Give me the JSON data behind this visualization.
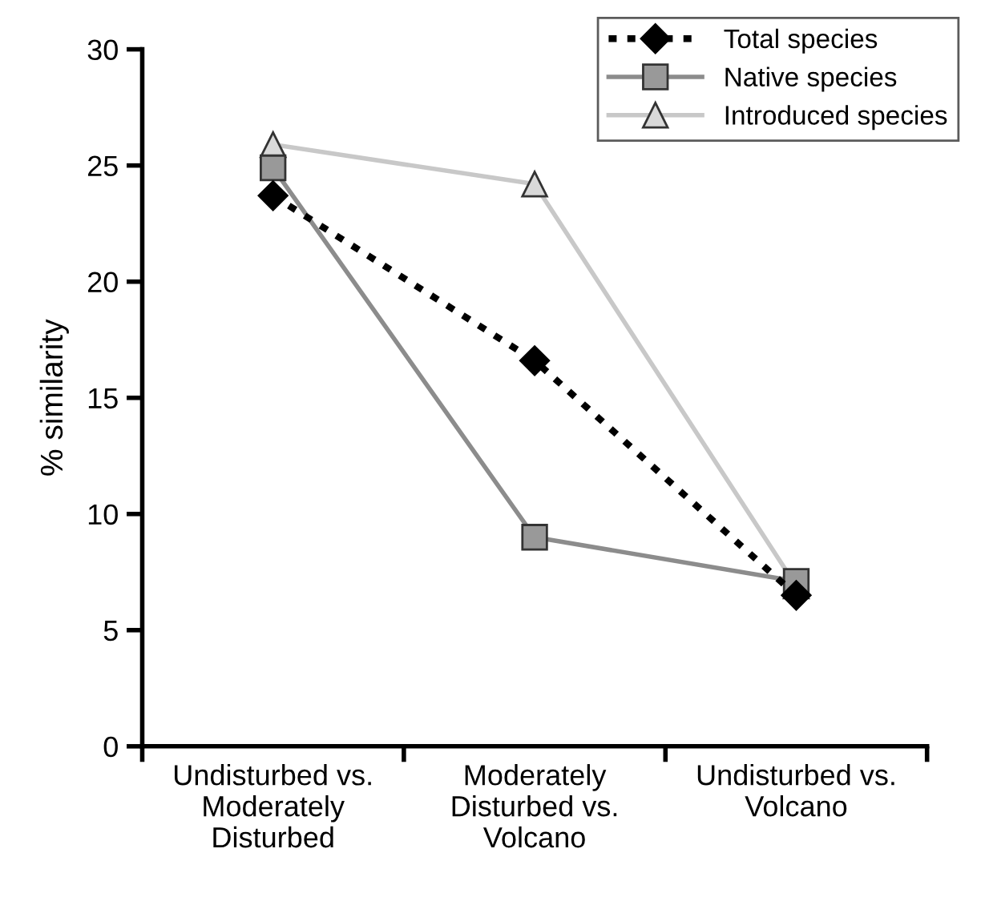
{
  "chart_data": {
    "type": "line",
    "ylabel": "% similarity",
    "categories": [
      "Undisturbed vs.\nModerately\nDisturbed",
      "Moderately\nDisturbed vs.\nVolcano",
      "Undisturbed vs.\nVolcano"
    ],
    "series": [
      {
        "name": "Total species",
        "color": "#000000",
        "values": [
          23.7,
          16.6,
          6.5
        ],
        "marker": "diamond",
        "line_style": "dotted"
      },
      {
        "name": "Native species",
        "color": "#8c8c8c",
        "values": [
          24.9,
          9.0,
          7.1
        ],
        "marker": "square",
        "line_style": "solid"
      },
      {
        "name": "Introduced species",
        "color": "#c8c8c8",
        "values": [
          25.9,
          24.2,
          6.9
        ],
        "marker": "triangle",
        "line_style": "solid"
      }
    ],
    "ylim": [
      0,
      30
    ],
    "yticks": [
      0,
      5,
      10,
      15,
      20,
      25,
      30
    ],
    "grid": false,
    "legend": "top right"
  }
}
